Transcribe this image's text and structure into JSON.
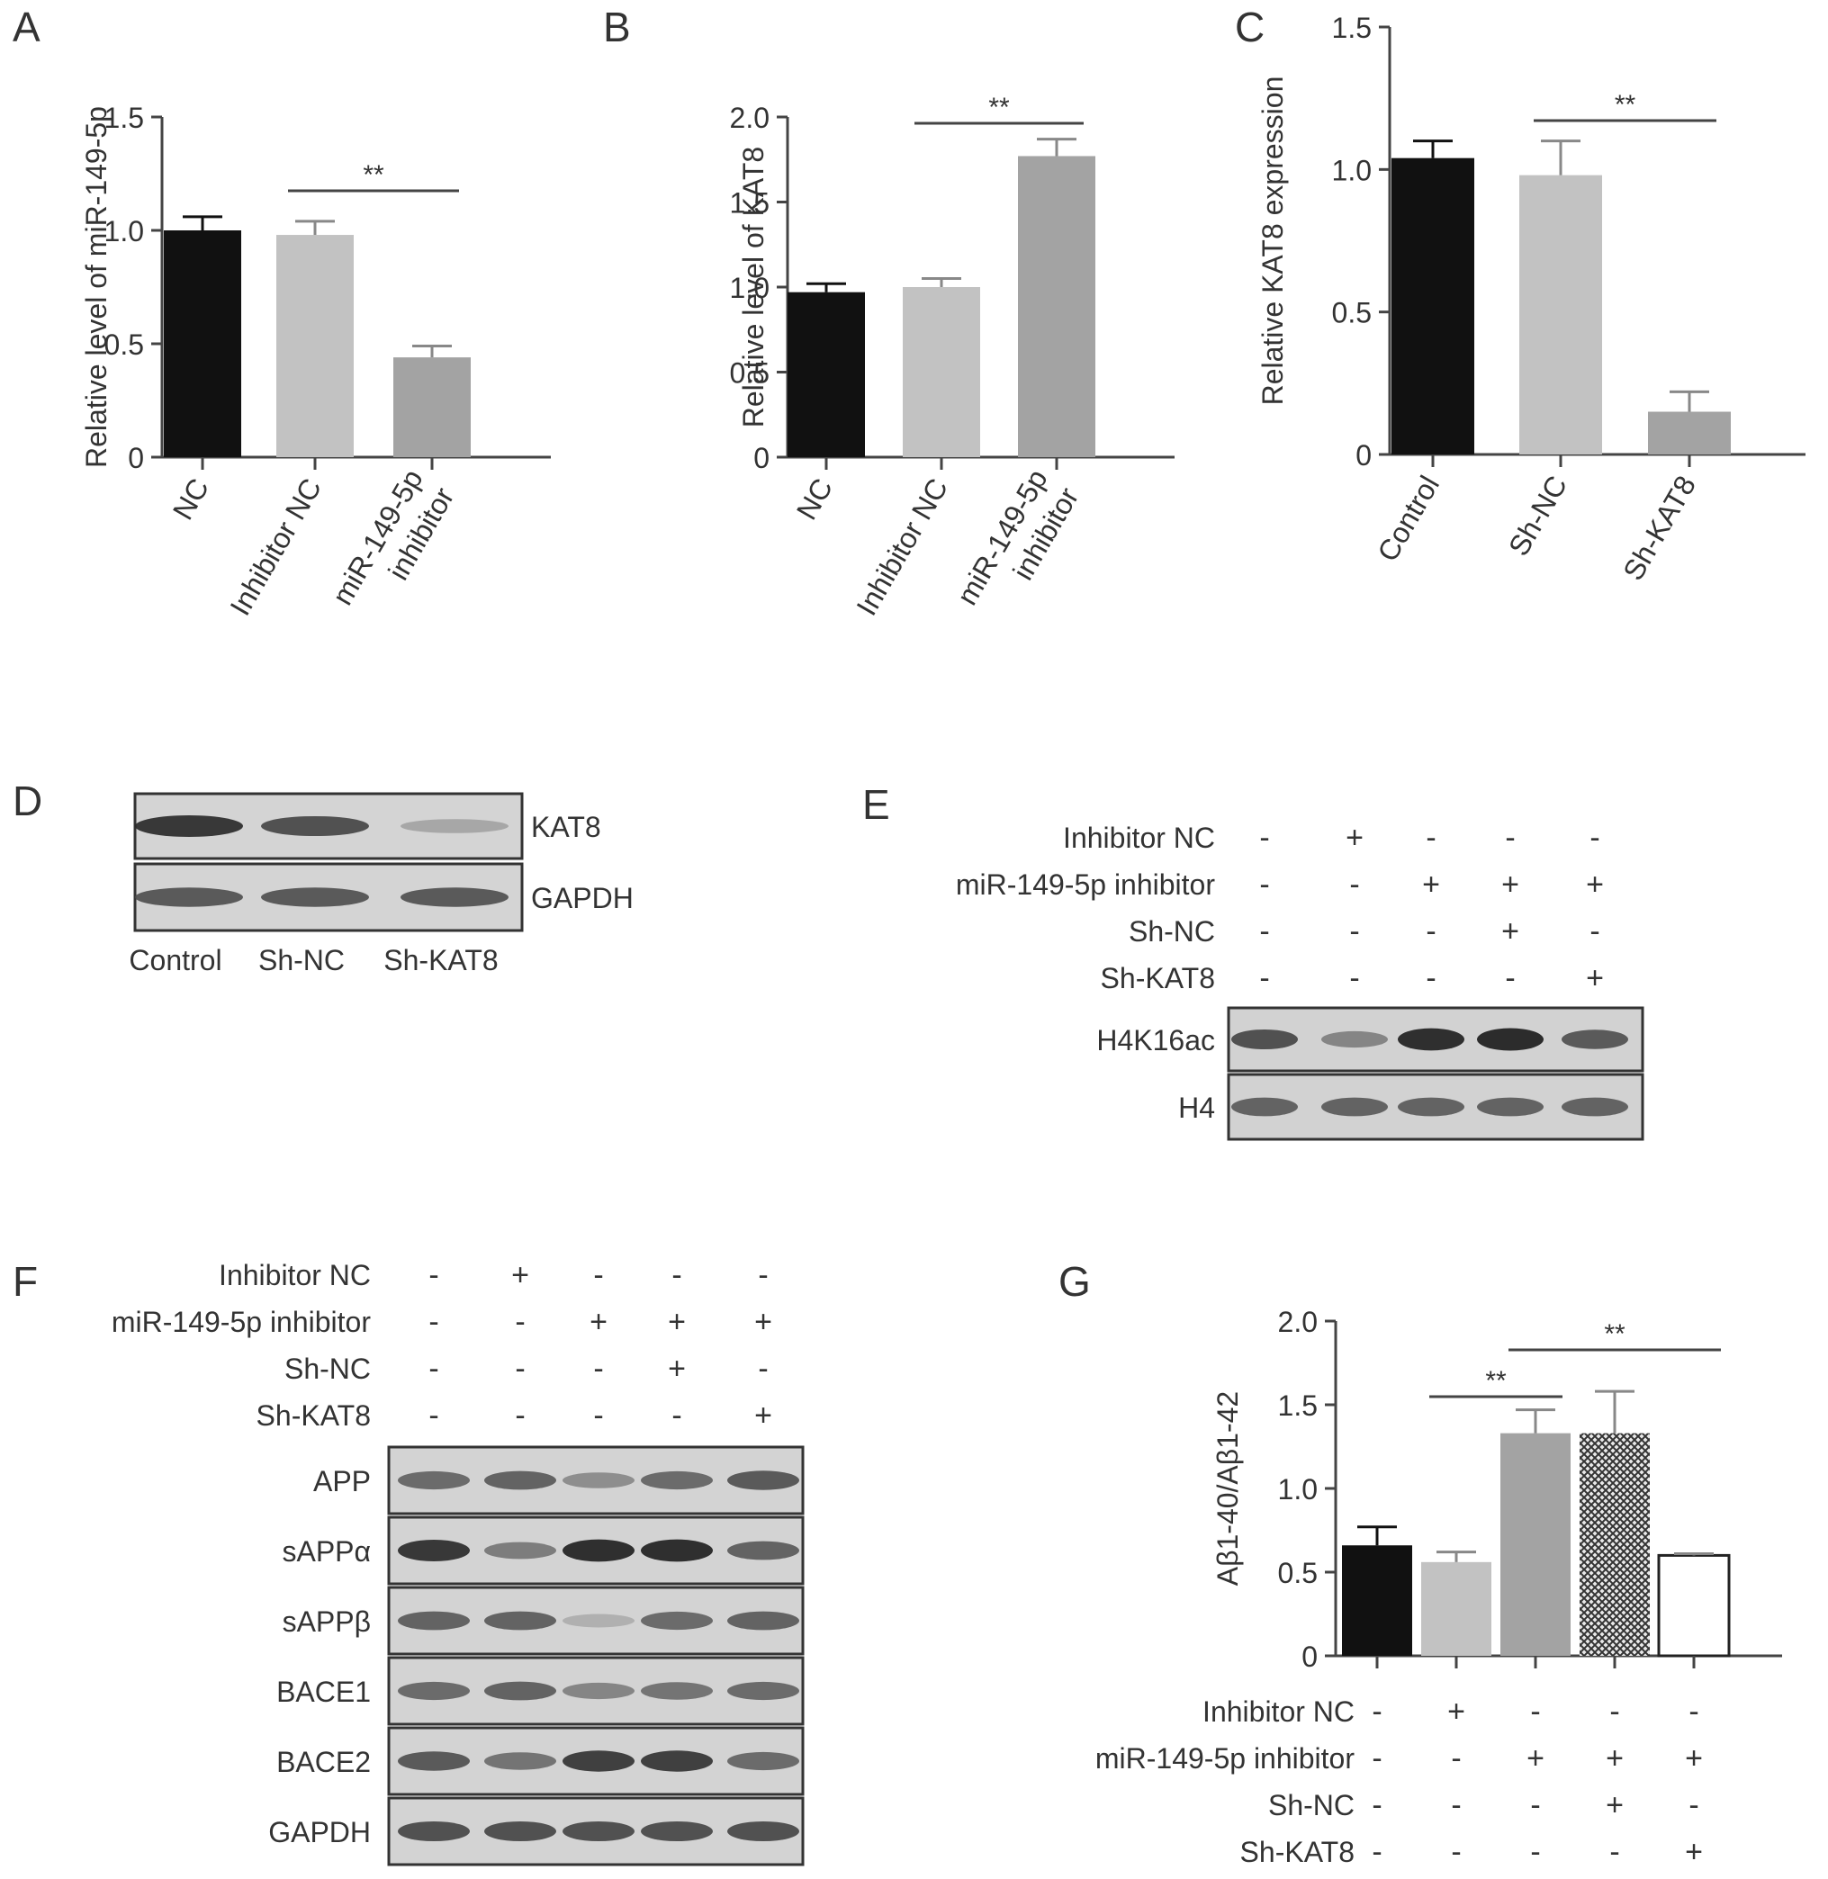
{
  "panels": {
    "A": {
      "letter": "A",
      "chart_data": {
        "type": "bar",
        "ylabel": "Relative level of miR-149-5p",
        "ylim": [
          0,
          1.5
        ],
        "yticks": [
          "0",
          "0.5",
          "1.0",
          "1.5"
        ],
        "categories": [
          "NC",
          "Inhibitor NC",
          "miR-149-5p inhibitor"
        ],
        "category_lines": [
          [
            "NC"
          ],
          [
            "Inhibitor NC"
          ],
          [
            "miR-149-5p",
            "inhibitor"
          ]
        ],
        "values": [
          1.0,
          0.98,
          0.44
        ],
        "errors": [
          0.06,
          0.06,
          0.05
        ],
        "colors": [
          "#111111",
          "#c2c2c2",
          "#a3a3a3"
        ],
        "significance": [
          {
            "from": 1,
            "to": 2,
            "label": "**"
          }
        ]
      }
    },
    "B": {
      "letter": "B",
      "chart_data": {
        "type": "bar",
        "ylabel": "Relative level of KAT8",
        "ylim": [
          0,
          2.0
        ],
        "yticks": [
          "0",
          "0.5",
          "1.0",
          "1.5",
          "2.0"
        ],
        "categories": [
          "NC",
          "Inhibitor NC",
          "miR-149-5p inhibitor"
        ],
        "category_lines": [
          [
            "NC"
          ],
          [
            "Inhibitor NC"
          ],
          [
            "miR-149-5p",
            "inhibitor"
          ]
        ],
        "values": [
          0.97,
          1.0,
          1.77
        ],
        "errors": [
          0.05,
          0.05,
          0.1
        ],
        "colors": [
          "#111111",
          "#c2c2c2",
          "#a3a3a3"
        ],
        "significance": [
          {
            "from": 1,
            "to": 2,
            "label": "**"
          }
        ]
      }
    },
    "C": {
      "letter": "C",
      "chart_data": {
        "type": "bar",
        "ylabel": "Relative KAT8 expression",
        "ylim": [
          0,
          1.5
        ],
        "yticks": [
          "0",
          "0.5",
          "1.0",
          "1.5"
        ],
        "categories": [
          "Control",
          "Sh-NC",
          "Sh-KAT8"
        ],
        "category_lines": [
          [
            "Control"
          ],
          [
            "Sh-NC"
          ],
          [
            "Sh-KAT8"
          ]
        ],
        "values": [
          1.04,
          0.98,
          0.15
        ],
        "errors": [
          0.06,
          0.12,
          0.07
        ],
        "colors": [
          "#111111",
          "#c2c2c2",
          "#a3a3a3"
        ],
        "significance": [
          {
            "from": 1,
            "to": 2,
            "label": "**"
          }
        ]
      }
    },
    "G": {
      "letter": "G",
      "chart_data": {
        "type": "bar",
        "ylabel": "Aβ1-40/Aβ1-42",
        "ylim": [
          0,
          2.0
        ],
        "yticks": [
          "0",
          "0.5",
          "1.0",
          "1.5",
          "2.0"
        ],
        "values": [
          0.66,
          0.56,
          1.33,
          1.33,
          0.6
        ],
        "errors": [
          0.11,
          0.06,
          0.14,
          0.25,
          0.01
        ],
        "colors": [
          "#111111",
          "#c2c2c2",
          "#a3a3a3",
          "hatch",
          "#ffffff"
        ],
        "significance": [
          {
            "from": 1,
            "to": 2,
            "label": "**"
          },
          {
            "from": 2,
            "to": 4,
            "label": "**"
          }
        ],
        "treatments": [
          {
            "label": "Inhibitor NC",
            "signs": [
              "-",
              "+",
              "-",
              "-",
              "-"
            ]
          },
          {
            "label": "miR-149-5p inhibitor",
            "signs": [
              "-",
              "-",
              "+",
              "+",
              "+"
            ]
          },
          {
            "label": "Sh-NC",
            "signs": [
              "-",
              "-",
              "-",
              "+",
              "-"
            ]
          },
          {
            "label": "Sh-KAT8",
            "signs": [
              "-",
              "-",
              "-",
              "-",
              "+"
            ]
          }
        ]
      }
    },
    "D": {
      "letter": "D",
      "bands": [
        {
          "label": "KAT8",
          "intensities": [
            0.85,
            0.7,
            0.2
          ]
        },
        {
          "label": "GAPDH",
          "intensities": [
            0.65,
            0.65,
            0.65
          ]
        }
      ],
      "lanes": [
        "Control",
        "Sh-NC",
        "Sh-KAT8"
      ]
    },
    "E": {
      "letter": "E",
      "treatments": [
        {
          "label": "Inhibitor NC",
          "signs": [
            "-",
            "+",
            "-",
            "-",
            "-"
          ]
        },
        {
          "label": "miR-149-5p inhibitor",
          "signs": [
            "-",
            "-",
            "+",
            "+",
            "+"
          ]
        },
        {
          "label": "Sh-NC",
          "signs": [
            "-",
            "-",
            "-",
            "+",
            "-"
          ]
        },
        {
          "label": "Sh-KAT8",
          "signs": [
            "-",
            "-",
            "-",
            "-",
            "+"
          ]
        }
      ],
      "bands": [
        {
          "label": "H4K16ac",
          "intensities": [
            0.7,
            0.4,
            0.9,
            0.92,
            0.65
          ]
        },
        {
          "label": "H4",
          "intensities": [
            0.6,
            0.6,
            0.6,
            0.6,
            0.6
          ]
        }
      ]
    },
    "F": {
      "letter": "F",
      "treatments": [
        {
          "label": "Inhibitor NC",
          "signs": [
            "-",
            "+",
            "-",
            "-",
            "-"
          ]
        },
        {
          "label": "miR-149-5p inhibitor",
          "signs": [
            "-",
            "-",
            "+",
            "+",
            "+"
          ]
        },
        {
          "label": "Sh-NC",
          "signs": [
            "-",
            "-",
            "-",
            "+",
            "-"
          ]
        },
        {
          "label": "Sh-KAT8",
          "signs": [
            "-",
            "-",
            "-",
            "-",
            "+"
          ]
        }
      ],
      "bands": [
        {
          "label": "APP",
          "intensities": [
            0.55,
            0.6,
            0.35,
            0.55,
            0.65
          ]
        },
        {
          "label": "sAPPα",
          "intensities": [
            0.85,
            0.45,
            0.9,
            0.9,
            0.6
          ]
        },
        {
          "label": "sAPPβ",
          "intensities": [
            0.6,
            0.6,
            0.15,
            0.55,
            0.6
          ]
        },
        {
          "label": "BACE1",
          "intensities": [
            0.55,
            0.6,
            0.4,
            0.5,
            0.55
          ]
        },
        {
          "label": "BACE2",
          "intensities": [
            0.65,
            0.5,
            0.8,
            0.8,
            0.55
          ]
        },
        {
          "label": "GAPDH",
          "intensities": [
            0.7,
            0.7,
            0.7,
            0.7,
            0.7
          ]
        }
      ]
    }
  }
}
